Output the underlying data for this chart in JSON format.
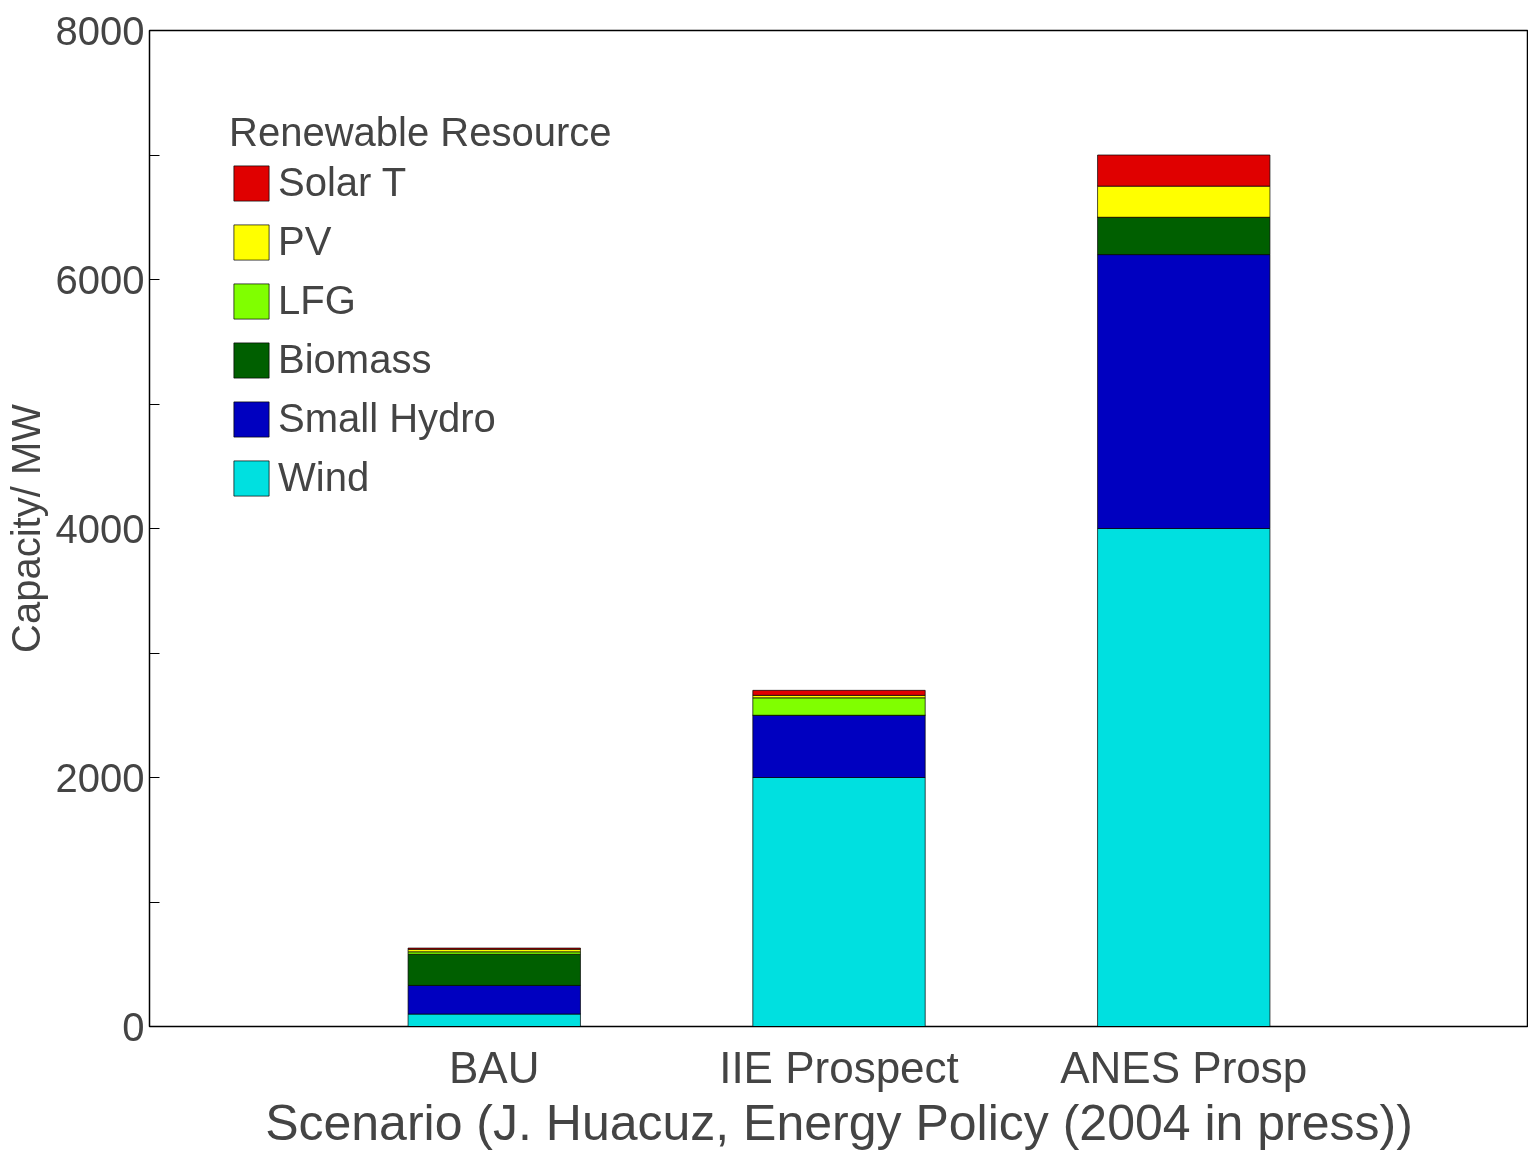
{
  "chart_data": {
    "type": "bar",
    "stacked": true,
    "xlabel": "Scenario (J. Huacuz, Energy Policy (2004 in press))",
    "ylabel": "Capacity/ MW",
    "legend_title": "Renewable Resource",
    "categories": [
      "BAU",
      "IIE Prospect",
      "ANES Prosp"
    ],
    "series": [
      {
        "name": "Wind",
        "color": "#00e0e0",
        "values": [
          100,
          2000,
          4000
        ]
      },
      {
        "name": "Small Hydro",
        "color": "#0000c0",
        "values": [
          230,
          500,
          2200
        ]
      },
      {
        "name": "Biomass",
        "color": "#005f00",
        "values": [
          250,
          0,
          300
        ]
      },
      {
        "name": "LFG",
        "color": "#80ff00",
        "values": [
          20,
          140,
          0
        ]
      },
      {
        "name": "PV",
        "color": "#ffff00",
        "values": [
          20,
          20,
          250
        ]
      },
      {
        "name": "Solar T",
        "color": "#e00000",
        "values": [
          10,
          40,
          250
        ]
      }
    ],
    "ylim": [
      0,
      8000
    ],
    "yticks": [
      0,
      {
        "value": 1000,
        "label": null
      },
      2000,
      {
        "value": 3000,
        "label": null
      },
      4000,
      {
        "value": 5000,
        "label": null
      },
      6000,
      {
        "value": 7000,
        "label": null
      },
      8000
    ],
    "grid": false,
    "legend": "top left"
  }
}
